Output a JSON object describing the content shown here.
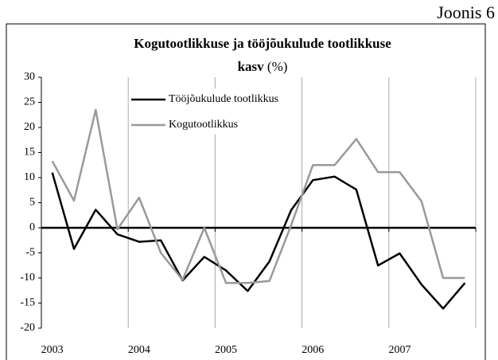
{
  "caption": "Joonis 6",
  "chart_data": {
    "type": "line",
    "title": [
      "Kogutootlikkuse ja tööjõukulude tootlikkuse",
      "kasv"
    ],
    "title_unit": "(%)",
    "categories": [
      "2003",
      null,
      null,
      null,
      "2004",
      null,
      null,
      null,
      "2005",
      null,
      null,
      null,
      "2006",
      null,
      null,
      null,
      "2007",
      null,
      null,
      null
    ],
    "series": [
      {
        "name": "Tööjõukulude tootlikkus",
        "color": "#000000",
        "values": [
          11,
          -4.2,
          3.6,
          -1.3,
          -2.8,
          -2.5,
          -10.5,
          -5.8,
          -8.5,
          -12.6,
          -6.7,
          3.5,
          9.5,
          10.2,
          7.6,
          -7.5,
          -5.1,
          -11.3,
          -16.1,
          -11
        ]
      },
      {
        "name": "Kogutootlikkus",
        "color": "#999999",
        "values": [
          13.3,
          5.4,
          23.5,
          -0.3,
          6,
          -5,
          -10.4,
          0,
          -11,
          -11,
          -10.6,
          0.5,
          12.5,
          12.5,
          17.7,
          11.1,
          11.1,
          5.3,
          -10,
          -10
        ]
      }
    ],
    "ylim": [
      -20,
      30
    ],
    "yticks": [
      -20,
      -15,
      -10,
      -5,
      0,
      5,
      10,
      15,
      20,
      25,
      30
    ],
    "legend": "top"
  }
}
